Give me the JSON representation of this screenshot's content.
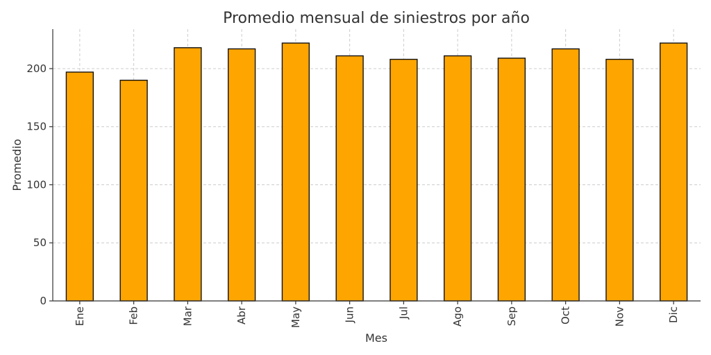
{
  "chart_data": {
    "type": "bar",
    "title": "Promedio mensual de siniestros por año",
    "xlabel": "Mes",
    "ylabel": "Promedio",
    "categories": [
      "Ene",
      "Feb",
      "Mar",
      "Abr",
      "May",
      "Jun",
      "Jul",
      "Ago",
      "Sep",
      "Oct",
      "Nov",
      "Dic"
    ],
    "values": [
      197,
      190,
      218,
      217,
      222,
      211,
      208,
      211,
      209,
      217,
      208,
      222
    ],
    "ylim": [
      0,
      234
    ],
    "yticks": [
      0,
      50,
      100,
      150,
      200
    ],
    "grid": true,
    "bar_color": "#FFA500",
    "edge_color": "#111111"
  }
}
